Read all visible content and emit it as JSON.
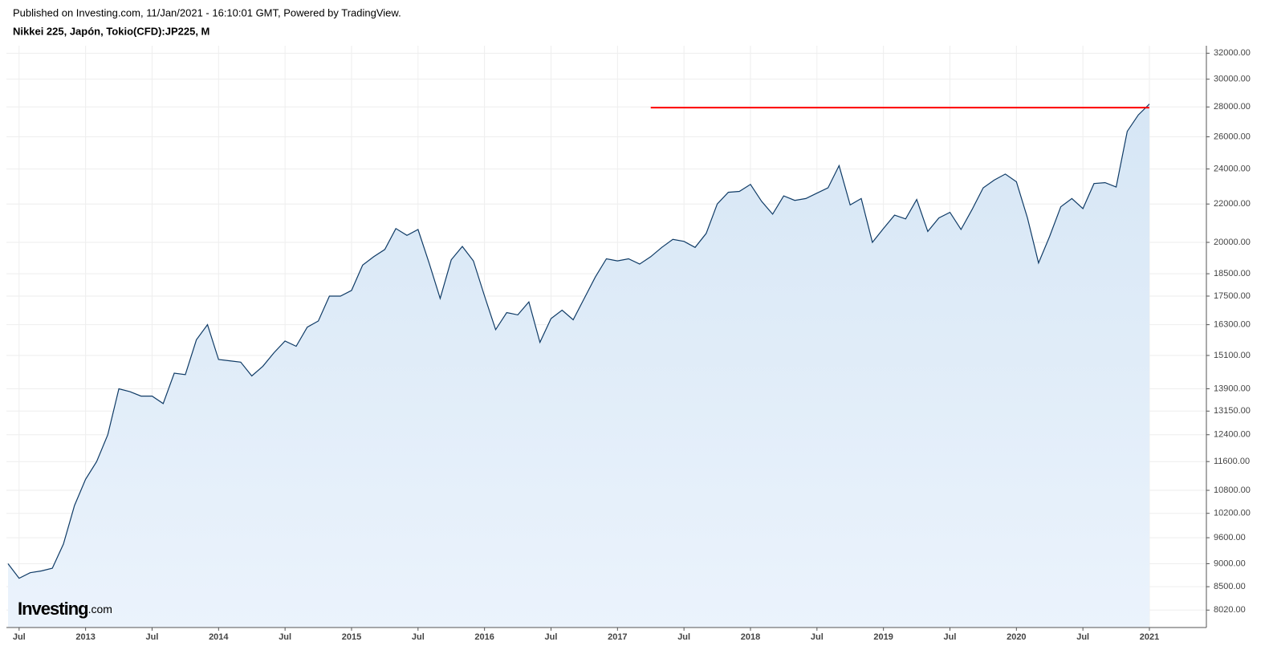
{
  "header": {
    "published": "Published on Investing.com, 11/Jan/2021 - 16:10:01 GMT, Powered by TradingView.",
    "title": "Nikkei 225, Japón, Tokio(CFD):JP225, M"
  },
  "logo": {
    "brand": "Investing",
    "suffix": ".com"
  },
  "chart_data": {
    "type": "area",
    "log_scale": true,
    "grid": true,
    "color": "#0f3b66",
    "fill": "#dbe9f7",
    "categories": [
      null,
      "Jul",
      null,
      null,
      null,
      null,
      null,
      "2013",
      null,
      null,
      null,
      null,
      null,
      "Jul",
      null,
      null,
      null,
      null,
      null,
      "2014",
      null,
      null,
      null,
      null,
      null,
      "Jul",
      null,
      null,
      null,
      null,
      null,
      "2015",
      null,
      null,
      null,
      null,
      null,
      "Jul",
      null,
      null,
      null,
      null,
      null,
      "2016",
      null,
      null,
      null,
      null,
      null,
      "Jul",
      null,
      null,
      null,
      null,
      null,
      "2017",
      null,
      null,
      null,
      null,
      null,
      "Jul",
      null,
      null,
      null,
      null,
      null,
      "2018",
      null,
      null,
      null,
      null,
      null,
      "Jul",
      null,
      null,
      null,
      null,
      null,
      "2019",
      null,
      null,
      null,
      null,
      null,
      "Jul",
      null,
      null,
      null,
      null,
      null,
      "2020",
      null,
      null,
      null,
      null,
      null,
      "Jul",
      null,
      null,
      null,
      null,
      null,
      "2021"
    ],
    "values": [
      9000,
      8680,
      8800,
      8840,
      8900,
      9450,
      10400,
      11100,
      11600,
      12400,
      13900,
      13800,
      13650,
      13650,
      13400,
      14450,
      14400,
      15700,
      16300,
      14950,
      14900,
      14850,
      14350,
      14700,
      15200,
      15650,
      15450,
      16200,
      16450,
      17500,
      17500,
      17750,
      18900,
      19300,
      19650,
      20700,
      20350,
      20650,
      19000,
      17400,
      19150,
      19800,
      19100,
      17500,
      16100,
      16800,
      16700,
      17250,
      15600,
      16550,
      16900,
      16500,
      17400,
      18350,
      19200,
      19100,
      19200,
      18950,
      19300,
      19750,
      20150,
      20050,
      19750,
      20450,
      22000,
      22650,
      22700,
      23100,
      22150,
      21450,
      22450,
      22200,
      22300,
      22600,
      22900,
      24200,
      21950,
      22300,
      20000,
      20700,
      21400,
      21200,
      22250,
      20550,
      21250,
      21550,
      20650,
      21700,
      22900,
      23350,
      23700,
      23250,
      21250,
      19000,
      20300,
      21850,
      22300,
      21750,
      23150,
      23200,
      22950,
      26350,
      27450,
      28200
    ],
    "ylim": [
      7680,
      32600
    ],
    "yticks": [
      {
        "value": 32000,
        "label": "32000.00"
      },
      {
        "value": 30000,
        "label": "30000.00"
      },
      {
        "value": 28000,
        "label": "28000.00"
      },
      {
        "value": 26000,
        "label": "26000.00"
      },
      {
        "value": 24000,
        "label": "24000.00"
      },
      {
        "value": 22000,
        "label": "22000.00"
      },
      {
        "value": 20000,
        "label": "20000.00"
      },
      {
        "value": 18500,
        "label": "18500.00"
      },
      {
        "value": 17500,
        "label": "17500.00"
      },
      {
        "value": 16300,
        "label": "16300.00"
      },
      {
        "value": 15100,
        "label": "15100.00"
      },
      {
        "value": 13900,
        "label": "13900.00"
      },
      {
        "value": 13150,
        "label": "13150.00"
      },
      {
        "value": 12400,
        "label": "12400.00"
      },
      {
        "value": 11600,
        "label": "11600.00"
      },
      {
        "value": 10800,
        "label": "10800.00"
      },
      {
        "value": 10200,
        "label": "10200.00"
      },
      {
        "value": 9600,
        "label": "9600.00"
      },
      {
        "value": 9000,
        "label": "9000.00"
      },
      {
        "value": 8500,
        "label": "8500.00"
      },
      {
        "value": 8020,
        "label": "8020.00"
      }
    ],
    "reference_line": {
      "value": 27950,
      "start_index": 58,
      "color": "#ff0000"
    }
  }
}
